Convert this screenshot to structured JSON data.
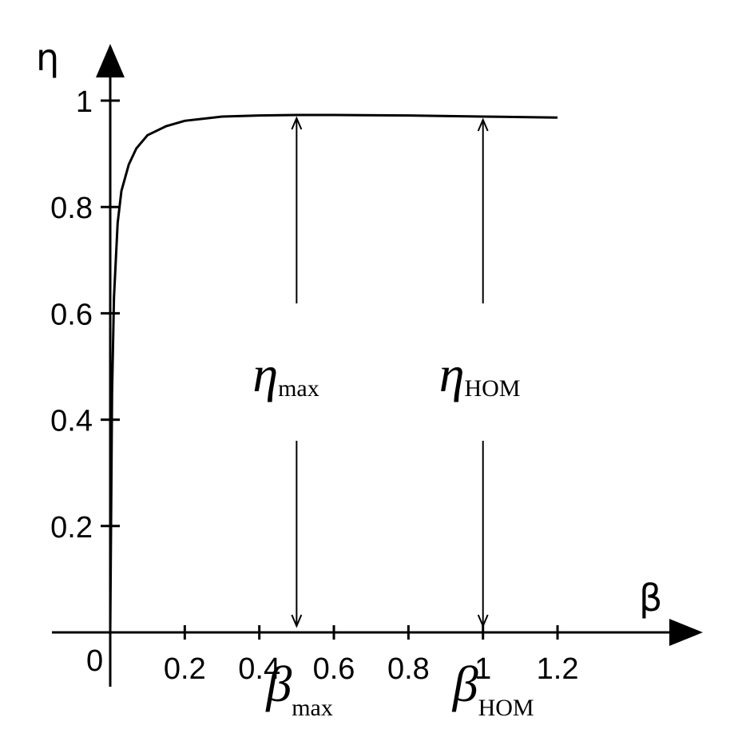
{
  "chart_data": {
    "type": "line",
    "xlabel": "β",
    "ylabel": "η",
    "xlim": [
      0,
      1.2
    ],
    "ylim": [
      0,
      1
    ],
    "x_ticks": [
      "0.2",
      "0.4",
      "0.6",
      "0.8",
      "1",
      "1.2"
    ],
    "y_ticks": [
      "0.2",
      "0.4",
      "0.6",
      "0.8",
      "1"
    ],
    "origin_label": "0",
    "grid": false,
    "series": [
      {
        "x": [
          0.0,
          0.005,
          0.01,
          0.02,
          0.03,
          0.05,
          0.07,
          0.1,
          0.15,
          0.2,
          0.3,
          0.4,
          0.5,
          0.6,
          0.8,
          1.0,
          1.2
        ],
        "y": [
          0.0,
          0.45,
          0.63,
          0.77,
          0.83,
          0.88,
          0.91,
          0.935,
          0.952,
          0.962,
          0.97,
          0.972,
          0.973,
          0.973,
          0.972,
          0.97,
          0.968
        ]
      }
    ],
    "annotations": [
      {
        "symbol": "η",
        "subscript": "max",
        "x": 0.5,
        "y": 0.973,
        "x_symbol": "β",
        "x_subscript": "max"
      },
      {
        "symbol": "η",
        "subscript": "HOM",
        "x": 1.0,
        "y": 0.97,
        "x_symbol": "β",
        "x_subscript": "HOM"
      }
    ]
  }
}
